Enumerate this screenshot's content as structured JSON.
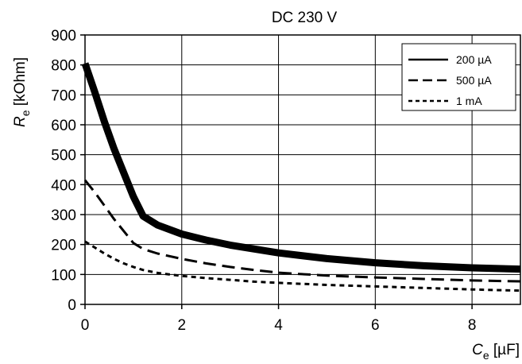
{
  "chart_data": {
    "type": "line",
    "title": "DC 230 V",
    "xlabel": {
      "symbol": "C",
      "subscript": "e",
      "unit": " [µF]"
    },
    "ylabel": {
      "symbol": "R",
      "subscript": "e",
      "unit": " [kOhm]"
    },
    "xlim": [
      0,
      9
    ],
    "ylim": [
      0,
      900
    ],
    "xticks": [
      0,
      2,
      4,
      6,
      8
    ],
    "yticks": [
      0,
      100,
      200,
      300,
      400,
      500,
      600,
      700,
      800,
      900
    ],
    "grid": true,
    "legend_position": "top-right",
    "series": [
      {
        "name": "200 µA",
        "style": "solid",
        "width": 9,
        "x": [
          0,
          0.2,
          0.4,
          0.6,
          0.8,
          1.0,
          1.2,
          1.5,
          2.0,
          2.5,
          3.0,
          3.5,
          4.0,
          5.0,
          6.0,
          7.0,
          8.0,
          9.0
        ],
        "y": [
          805,
          710,
          610,
          520,
          440,
          360,
          295,
          265,
          235,
          215,
          198,
          185,
          172,
          153,
          139,
          129,
          122,
          118
        ]
      },
      {
        "name": "500 µA",
        "style": "dashed",
        "width": 3,
        "x": [
          0,
          0.2,
          0.4,
          0.6,
          0.8,
          1.0,
          1.2,
          1.5,
          2.0,
          2.5,
          3.0,
          3.5,
          4.0,
          5.0,
          6.0,
          7.0,
          8.0,
          9.0
        ],
        "y": [
          415,
          375,
          330,
          285,
          245,
          205,
          185,
          170,
          152,
          137,
          125,
          115,
          106,
          96,
          90,
          85,
          80,
          77
        ]
      },
      {
        "name": "1 mA",
        "style": "dotted",
        "width": 3,
        "x": [
          0,
          0.2,
          0.4,
          0.6,
          0.8,
          1.0,
          1.2,
          1.5,
          2.0,
          2.5,
          3.0,
          3.5,
          4.0,
          5.0,
          6.0,
          7.0,
          8.0,
          9.0
        ],
        "y": [
          210,
          190,
          170,
          152,
          137,
          125,
          115,
          105,
          95,
          88,
          82,
          76,
          72,
          65,
          60,
          55,
          50,
          46
        ]
      }
    ]
  }
}
